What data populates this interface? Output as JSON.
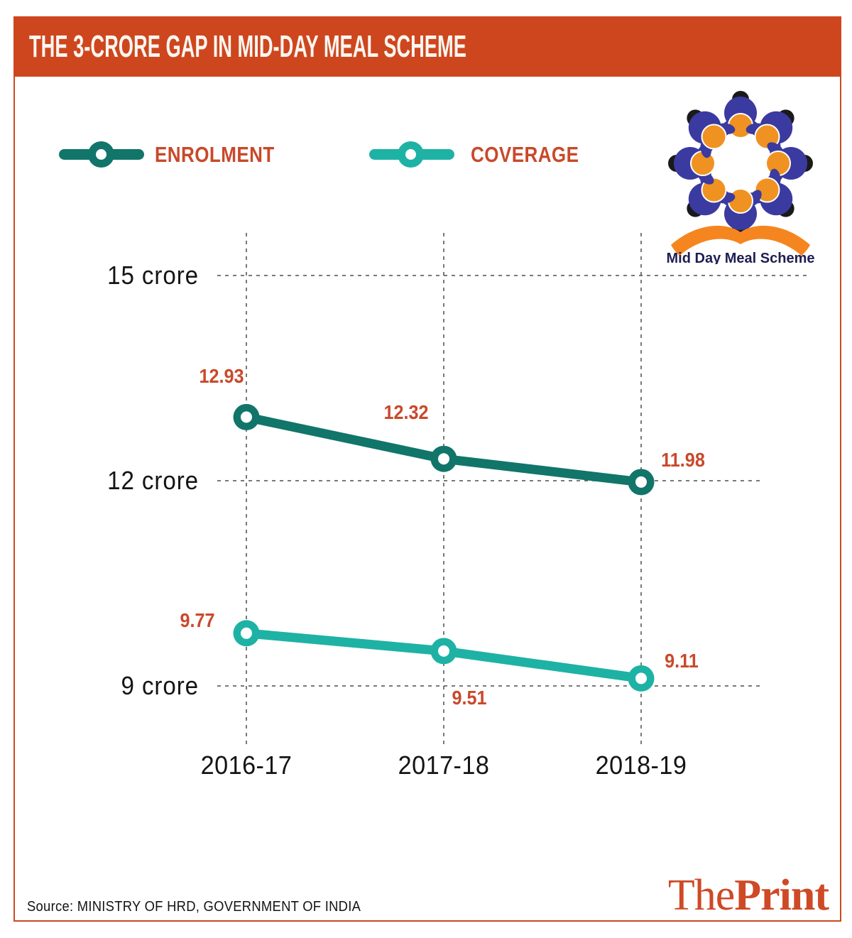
{
  "header": {
    "title": "THE 3-CRORE GAP IN MID-DAY MEAL SCHEME",
    "bg_color": "#CE461E",
    "text_color": "#FAF6F0"
  },
  "legend": {
    "items": [
      {
        "label": "ENROLMENT",
        "color": "#11756A"
      },
      {
        "label": "COVERAGE",
        "color": "#1EB2A5"
      }
    ]
  },
  "logo": {
    "caption": "Mid Day Meal Scheme",
    "figure_body_color": "#3B3AA0",
    "figure_head_color": "#1A1A1A",
    "plate_color": "#F09221",
    "book_color": "#F5861F",
    "caption_color": "#1E1E52"
  },
  "chart_data": {
    "type": "line",
    "categories": [
      "2016-17",
      "2017-18",
      "2018-19"
    ],
    "series": [
      {
        "name": "ENROLMENT",
        "color": "#11756A",
        "values": [
          12.93,
          12.32,
          11.98
        ]
      },
      {
        "name": "COVERAGE",
        "color": "#1EB2A5",
        "values": [
          9.77,
          9.51,
          9.11
        ]
      }
    ],
    "unit": "crore",
    "y_ticks": [
      "15 crore",
      "12 crore",
      "9 crore"
    ],
    "y_tick_values": [
      15,
      12,
      9
    ],
    "ylim": [
      8.2,
      15.9
    ],
    "grid": "dashed",
    "gridline_color": "#4D4D4D",
    "data_label_color": "#C9492B",
    "legend_position": "top"
  },
  "footer": {
    "source": "Source: MINISTRY OF HRD, GOVERNMENT OF INDIA",
    "brand_the": "The",
    "brand_print": "Print",
    "brand_color": "#CE4A26"
  }
}
